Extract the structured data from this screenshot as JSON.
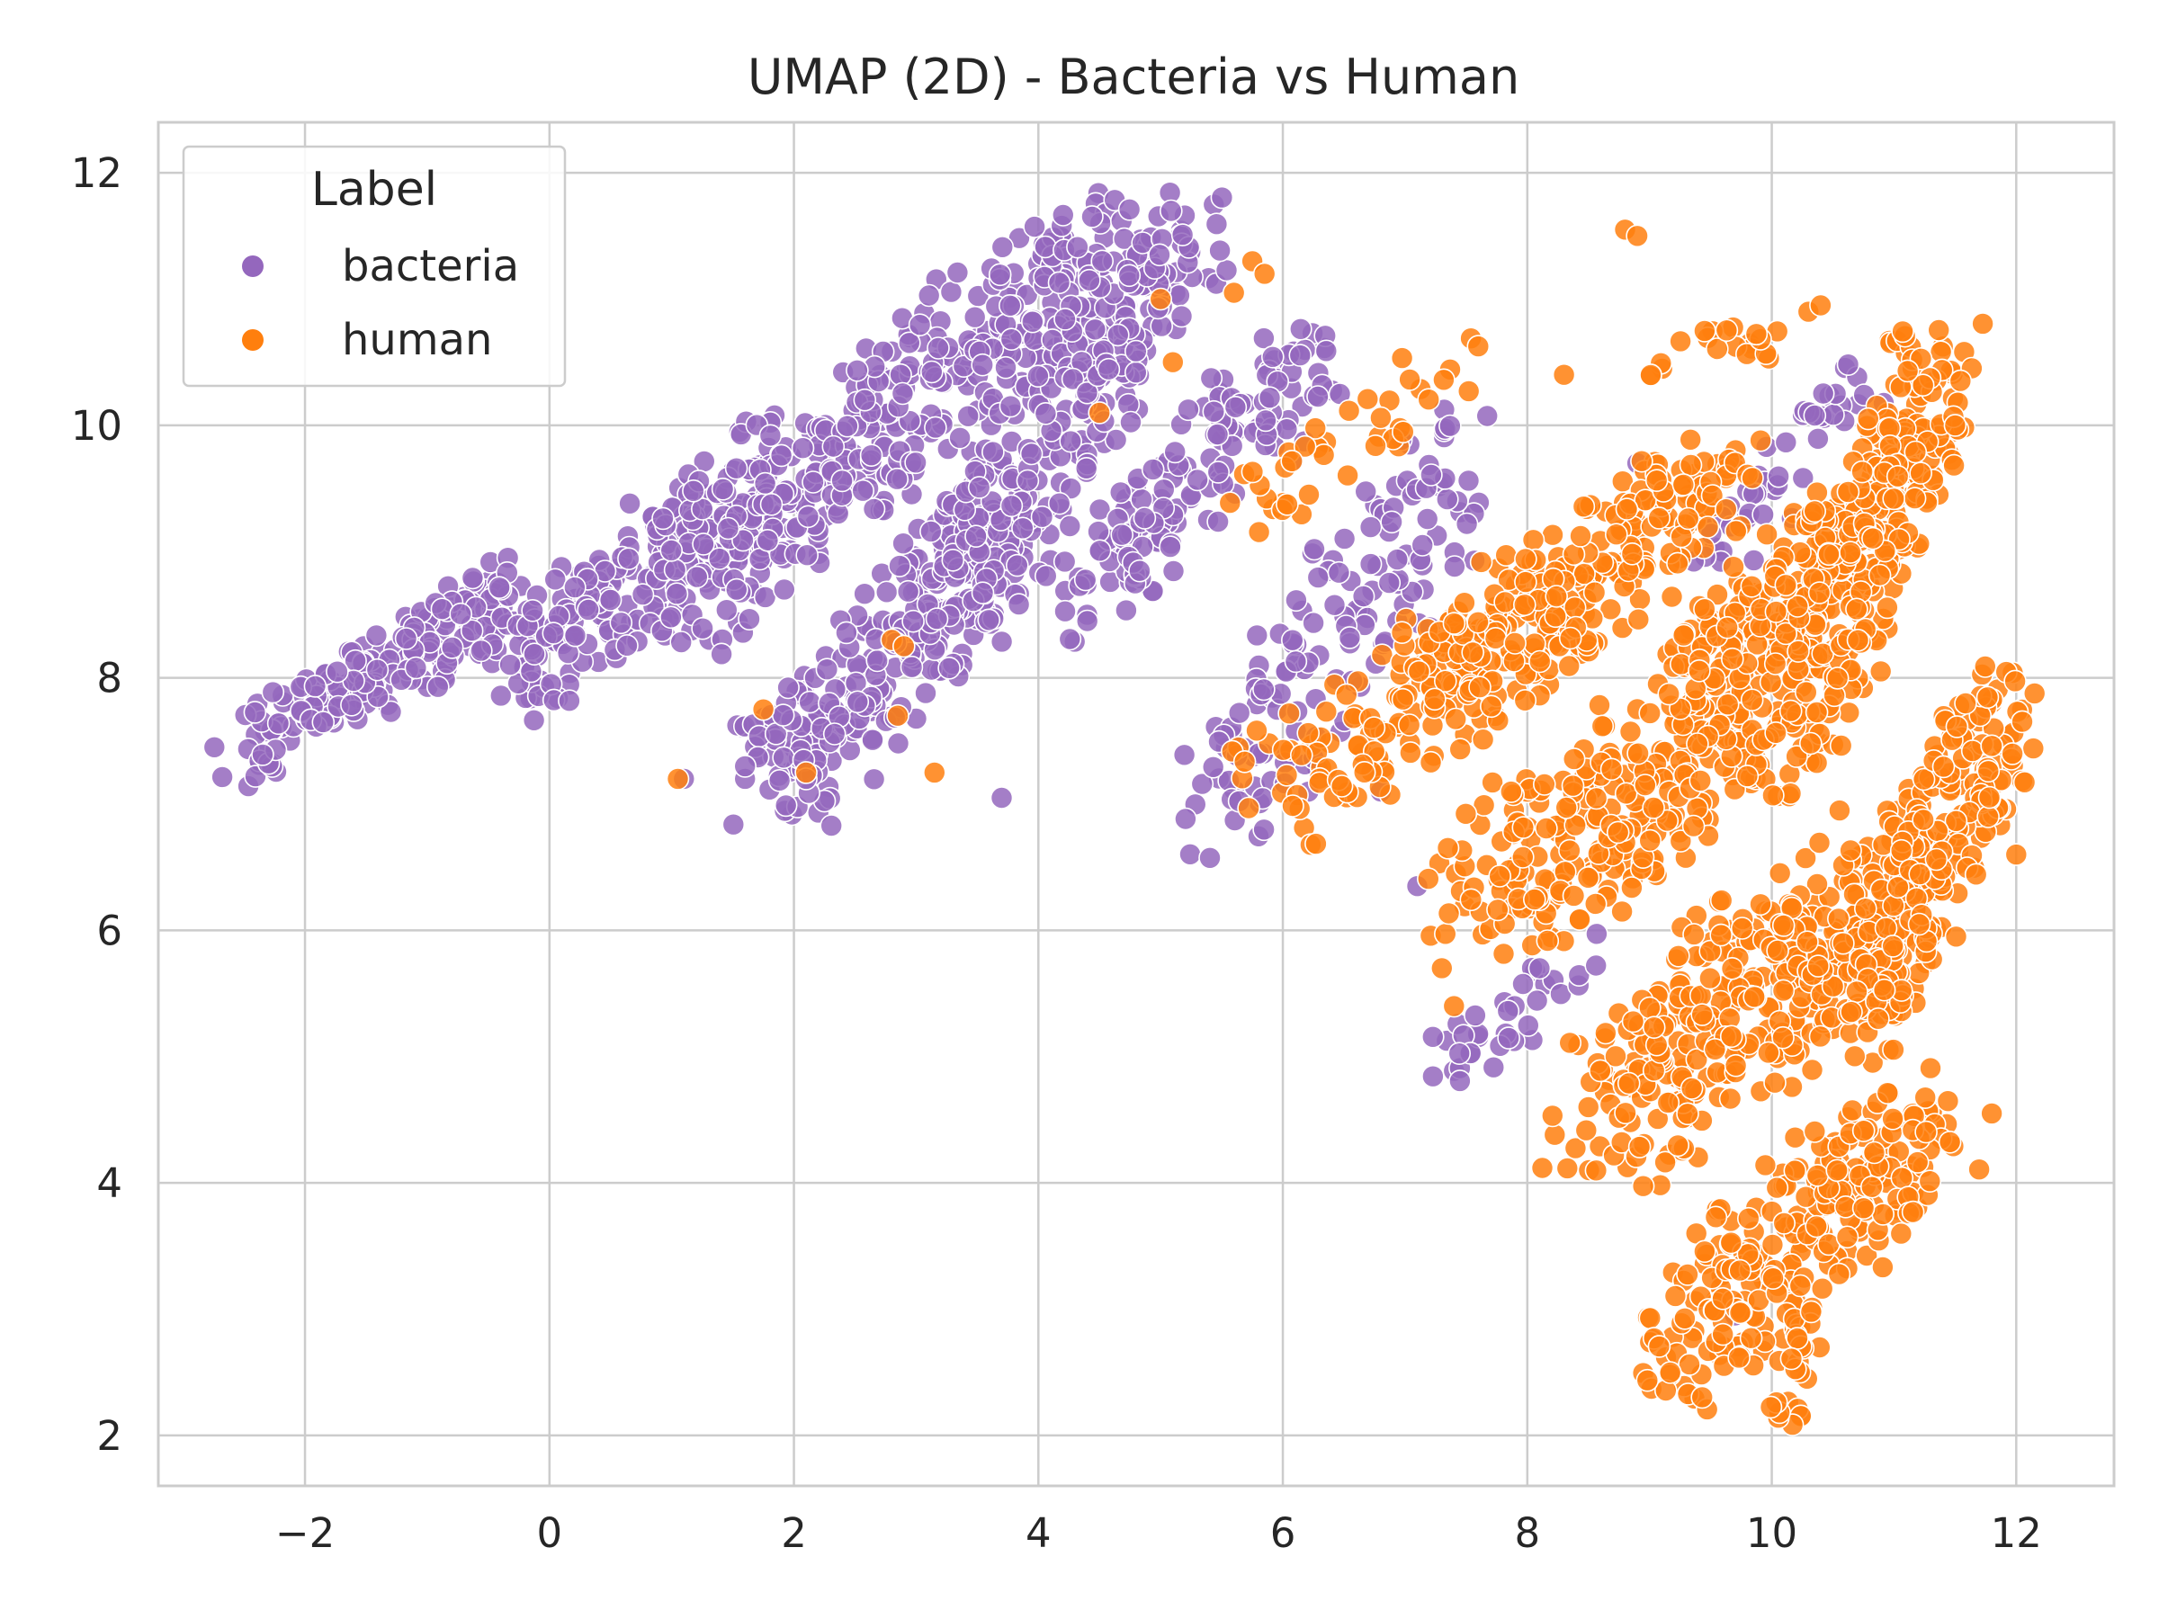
{
  "chart_data": {
    "type": "scatter",
    "title": "UMAP (2D) - Bacteria vs Human",
    "xlabel": "",
    "ylabel": "",
    "xlim": [
      -3.2,
      12.8
    ],
    "ylim": [
      1.6,
      12.4
    ],
    "x_ticks": [
      -2,
      0,
      2,
      4,
      6,
      8,
      10,
      12
    ],
    "x_tick_labels": [
      "−2",
      "0",
      "2",
      "4",
      "6",
      "8",
      "10",
      "12"
    ],
    "y_ticks": [
      2,
      4,
      6,
      8,
      10,
      12
    ],
    "y_tick_labels": [
      "2",
      "4",
      "6",
      "8",
      "10",
      "12"
    ],
    "grid": true,
    "legend": {
      "title": "Label",
      "placement": "top-left"
    },
    "series": [
      {
        "name": "bacteria",
        "color": "#9467bd",
        "clusters": [
          {
            "x0": -2.55,
            "y0": 7.4,
            "x1": -0.2,
            "y1": 8.7,
            "w": 0.55,
            "n": 190
          },
          {
            "x0": -0.3,
            "y0": 8.0,
            "x1": 2.0,
            "y1": 9.8,
            "w": 0.8,
            "n": 230
          },
          {
            "x0": 1.0,
            "y0": 8.6,
            "x1": 4.5,
            "y1": 11.4,
            "w": 1.0,
            "n": 380
          },
          {
            "x0": 1.8,
            "y0": 7.1,
            "x1": 3.8,
            "y1": 9.2,
            "w": 0.9,
            "n": 240
          },
          {
            "x0": 3.2,
            "y0": 8.5,
            "x1": 5.2,
            "y1": 11.6,
            "w": 0.9,
            "n": 280
          },
          {
            "x0": 4.4,
            "y0": 8.6,
            "x1": 6.2,
            "y1": 10.6,
            "w": 0.8,
            "n": 150
          },
          {
            "x0": 5.4,
            "y0": 6.9,
            "x1": 7.6,
            "y1": 9.8,
            "w": 1.0,
            "n": 150
          },
          {
            "x0": 7.3,
            "y0": 4.9,
            "x1": 8.4,
            "y1": 5.8,
            "w": 0.5,
            "n": 35
          },
          {
            "x0": 9.5,
            "y0": 9.0,
            "x1": 10.8,
            "y1": 10.4,
            "w": 0.5,
            "n": 45
          }
        ],
        "outliers": [
          [
            1.1,
            7.2
          ],
          [
            1.6,
            7.2
          ],
          [
            1.6,
            7.3
          ],
          [
            2.1,
            7.2
          ],
          [
            3.7,
            7.05
          ],
          [
            4.4,
            8.45
          ],
          [
            6.8,
            7.1
          ],
          [
            7.1,
            6.35
          ],
          [
            8.9,
            9.7
          ],
          [
            9.7,
            2.95
          ],
          [
            8.1,
            5.7
          ],
          [
            10.5,
            5.6
          ]
        ]
      },
      {
        "name": "human",
        "color": "#ff7f0e",
        "clusters": [
          {
            "x0": 5.9,
            "y0": 7.0,
            "x1": 8.3,
            "y1": 8.5,
            "w": 0.9,
            "n": 140
          },
          {
            "x0": 7.3,
            "y0": 8.0,
            "x1": 9.6,
            "y1": 9.6,
            "w": 0.9,
            "n": 220
          },
          {
            "x0": 7.6,
            "y0": 6.2,
            "x1": 10.2,
            "y1": 8.0,
            "w": 1.2,
            "n": 300
          },
          {
            "x0": 8.6,
            "y0": 4.4,
            "x1": 10.9,
            "y1": 6.4,
            "w": 1.2,
            "n": 320
          },
          {
            "x0": 9.1,
            "y0": 2.6,
            "x1": 11.3,
            "y1": 4.5,
            "w": 1.0,
            "n": 260
          },
          {
            "x0": 10.1,
            "y0": 2.1,
            "x1": 10.3,
            "y1": 2.9,
            "w": 0.3,
            "n": 25
          },
          {
            "x0": 10.2,
            "y0": 7.6,
            "x1": 11.4,
            "y1": 10.5,
            "w": 0.8,
            "n": 260
          },
          {
            "x0": 10.6,
            "y0": 5.2,
            "x1": 11.9,
            "y1": 7.8,
            "w": 0.8,
            "n": 280
          },
          {
            "x0": 9.4,
            "y0": 8.0,
            "x1": 11.0,
            "y1": 9.5,
            "w": 0.8,
            "n": 180
          },
          {
            "x0": 9.0,
            "y0": 10.5,
            "x1": 10.0,
            "y1": 10.7,
            "w": 0.3,
            "n": 20
          },
          {
            "x0": 5.6,
            "y0": 9.3,
            "x1": 7.5,
            "y1": 10.5,
            "w": 0.6,
            "n": 40
          }
        ],
        "outliers": [
          [
            1.05,
            7.2
          ],
          [
            1.75,
            7.75
          ],
          [
            2.1,
            7.25
          ],
          [
            2.8,
            8.3
          ],
          [
            2.9,
            8.25
          ],
          [
            2.85,
            7.7
          ],
          [
            3.15,
            7.25
          ],
          [
            4.5,
            10.1
          ],
          [
            5.1,
            10.5
          ],
          [
            5.0,
            11.0
          ],
          [
            5.6,
            11.05
          ],
          [
            5.75,
            11.3
          ],
          [
            5.85,
            11.2
          ],
          [
            8.8,
            11.55
          ],
          [
            8.9,
            11.5
          ],
          [
            10.3,
            10.9
          ],
          [
            10.4,
            10.95
          ],
          [
            8.3,
            10.4
          ],
          [
            7.4,
            5.4
          ],
          [
            8.5,
            4.6
          ],
          [
            11.8,
            4.55
          ],
          [
            12.0,
            6.6
          ],
          [
            11.5,
            10.0
          ],
          [
            9.6,
            2.8
          ]
        ]
      }
    ]
  }
}
